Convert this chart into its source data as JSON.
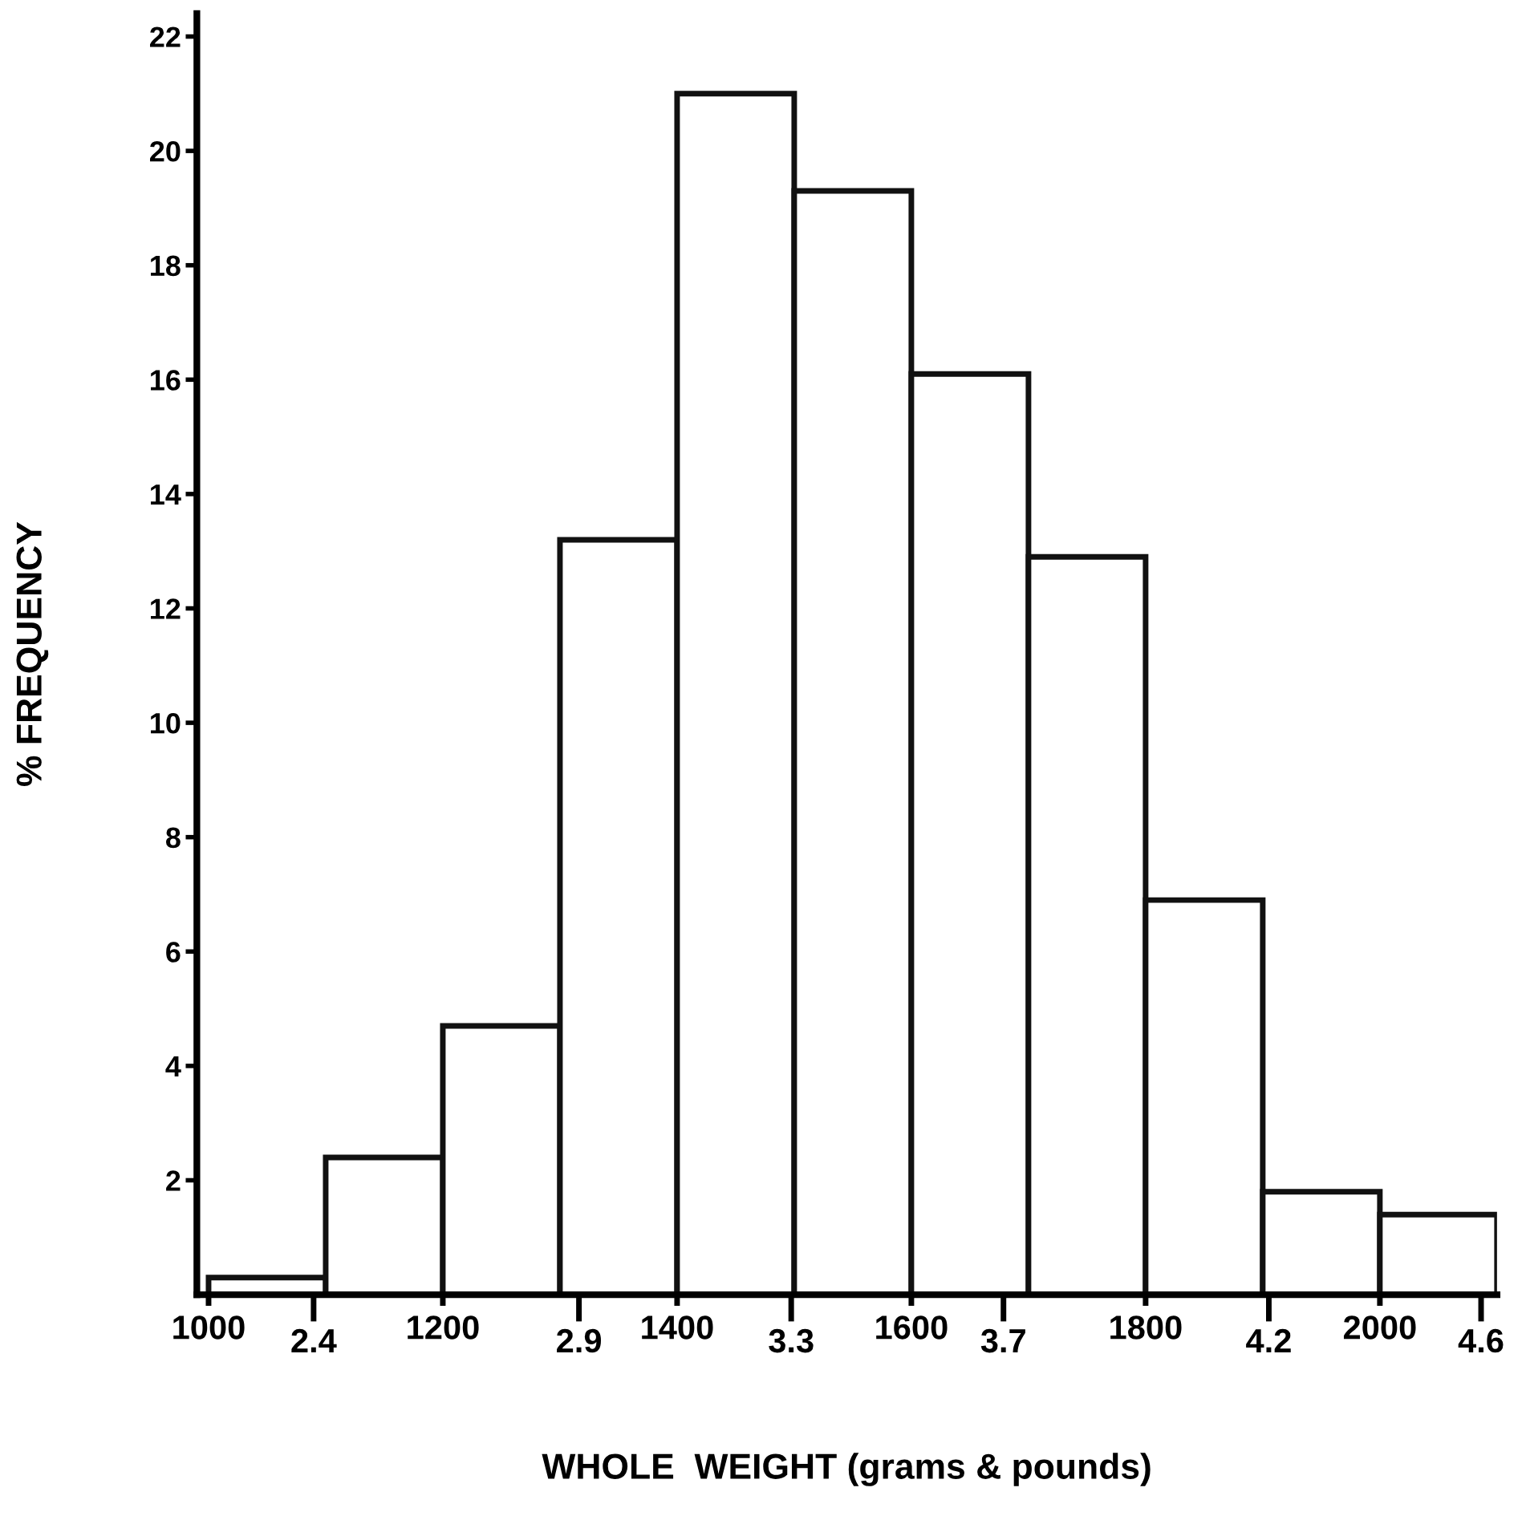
{
  "chart_data": {
    "type": "histogram",
    "xlabel": "WHOLE  WEIGHT (grams & pounds)",
    "ylabel": "% FREQUENCY",
    "bins": [
      1000,
      1100,
      1200,
      1300,
      1400,
      1500,
      1600,
      1700,
      1800,
      1900,
      2000,
      2100
    ],
    "values": [
      0.3,
      2.4,
      4.7,
      13.2,
      21.0,
      19.3,
      16.1,
      12.9,
      6.9,
      1.8,
      1.4
    ],
    "color": "#ffffff",
    "xlim": [
      990,
      2100
    ],
    "ylim": [
      0,
      22.4
    ],
    "xticks": [
      1000,
      1200,
      1400,
      1600,
      1800,
      2000
    ],
    "x2lim": [
      2.18,
      4.63
    ],
    "x2ticks": [
      2.4,
      2.9,
      3.3,
      3.7,
      4.2,
      4.6
    ],
    "yticks": [
      2,
      4,
      6,
      8,
      10,
      12,
      14,
      16,
      18,
      20,
      22
    ],
    "grid": false,
    "legend": false
  }
}
